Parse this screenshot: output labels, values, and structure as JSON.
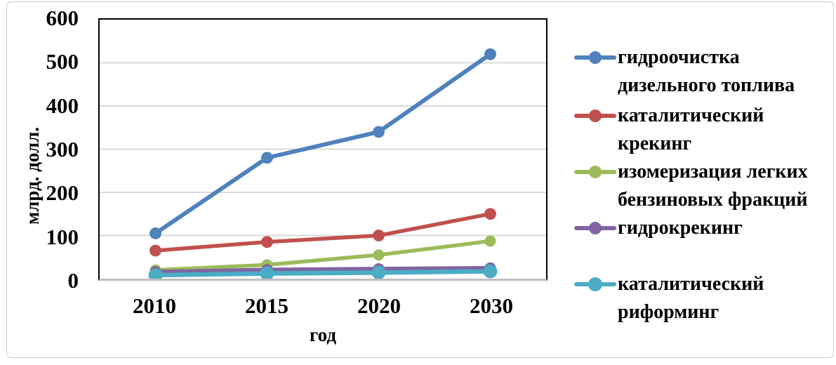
{
  "chart_data": {
    "type": "line",
    "categories": [
      "2010",
      "2015",
      "2020",
      "2030"
    ],
    "series": [
      {
        "name": "гидроочистка дизельного топлива",
        "color": "#4F81BD",
        "values": [
          105,
          280,
          340,
          520
        ]
      },
      {
        "name": "каталитический крекинг",
        "color": "#C0504D",
        "values": [
          65,
          85,
          100,
          150
        ]
      },
      {
        "name": "изомеризация легких бензиновых фракций",
        "color": "#9BBB59",
        "values": [
          20,
          32,
          55,
          87
        ]
      },
      {
        "name": "гидрокрекинг",
        "color": "#8064A2",
        "values": [
          16,
          21,
          23,
          25
        ]
      },
      {
        "name": "каталитический риформинг",
        "color": "#4BACC6",
        "values": [
          8,
          12,
          14,
          17
        ]
      }
    ],
    "title": "",
    "xlabel": "год",
    "ylabel": "млрд. долл.",
    "ylim": [
      0,
      600
    ],
    "ytick_step": 100,
    "yticks": [
      "600",
      "500",
      "400",
      "300",
      "200",
      "100",
      "0"
    ],
    "grid": true,
    "gridline_color": "#D9D9D9",
    "axis_line_color": "#000000",
    "baseline_color": "#BFBFBF",
    "legend_position": "right"
  }
}
